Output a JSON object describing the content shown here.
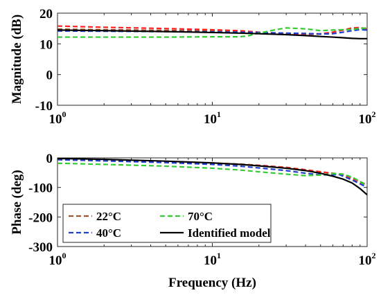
{
  "chart_data": [
    {
      "type": "line",
      "xscale": "log",
      "xlim": [
        1,
        100
      ],
      "ylim": [
        -10,
        20
      ],
      "xlabel": "",
      "ylabel": "Magnitude (dB)",
      "xticks": [
        {
          "base": "10",
          "exp": "0"
        },
        {
          "base": "10",
          "exp": "1"
        },
        {
          "base": "10",
          "exp": "2"
        }
      ],
      "yticks": [
        "-10",
        "0",
        "10",
        "20"
      ],
      "ytick_values": [
        -10,
        0,
        10,
        20
      ],
      "series": [
        {
          "name": "22°C",
          "color": "#a0522d",
          "dash": true,
          "x": [
            1,
            2,
            5,
            10,
            15,
            20,
            30,
            40,
            50,
            60,
            70,
            80,
            90,
            100
          ],
          "y": [
            14.8,
            14.6,
            14.4,
            14.2,
            14.0,
            13.5,
            13.3,
            13.0,
            13.2,
            13.8,
            14.5,
            15.0,
            15.1,
            14.9
          ]
        },
        {
          "name": "",
          "color": "#ff2020",
          "dash": true,
          "x": [
            1,
            2,
            5,
            10,
            15,
            20,
            30,
            40,
            50,
            60,
            70,
            80,
            90,
            100
          ],
          "y": [
            15.8,
            15.4,
            15.0,
            14.6,
            14.3,
            13.8,
            13.4,
            13.2,
            13.3,
            13.8,
            14.5,
            15.2,
            15.3,
            14.9
          ]
        },
        {
          "name": "40°C",
          "color": "#1f3fcf",
          "dash": true,
          "x": [
            1,
            2,
            5,
            10,
            15,
            20,
            30,
            40,
            50,
            60,
            70,
            80,
            90,
            100
          ],
          "y": [
            14.2,
            14.1,
            14.0,
            13.9,
            13.8,
            13.7,
            13.5,
            13.4,
            13.2,
            13.3,
            13.8,
            14.3,
            14.6,
            14.5
          ]
        },
        {
          "name": "70°C",
          "color": "#33cc33",
          "dash": true,
          "x": [
            1,
            2,
            5,
            10,
            15,
            17,
            20,
            25,
            30,
            40,
            50,
            60,
            70,
            80,
            90,
            100
          ],
          "y": [
            12.2,
            12.2,
            12.2,
            12.3,
            12.3,
            12.6,
            13.5,
            14.5,
            15.2,
            14.9,
            14.3,
            14.5,
            14.6,
            14.7,
            15.0,
            15.2
          ]
        },
        {
          "name": "Identified model",
          "color": "#000000",
          "dash": false,
          "x": [
            1,
            2,
            5,
            10,
            15,
            20,
            30,
            40,
            50,
            60,
            70,
            80,
            90,
            100
          ],
          "y": [
            14.5,
            14.3,
            14.0,
            13.7,
            13.5,
            13.3,
            13.0,
            12.7,
            12.4,
            12.2,
            12.0,
            11.8,
            11.7,
            11.7
          ]
        }
      ]
    },
    {
      "type": "line",
      "xscale": "log",
      "xlim": [
        1,
        100
      ],
      "ylim": [
        -300,
        0
      ],
      "xlabel": "Frequency (Hz)",
      "ylabel": "Phase (deg)",
      "xticks": [
        {
          "base": "10",
          "exp": "0"
        },
        {
          "base": "10",
          "exp": "1"
        },
        {
          "base": "10",
          "exp": "2"
        }
      ],
      "yticks": [
        "-300",
        "-200",
        "-100",
        "0"
      ],
      "ytick_values": [
        -300,
        -200,
        -100,
        0
      ],
      "legend": {
        "placement": "bottom-left",
        "entries": [
          "22°C",
          "70°C",
          "40°C",
          "Identified model"
        ]
      },
      "series": [
        {
          "name": "22°C",
          "color": "#a0522d",
          "dash": true,
          "x": [
            1,
            2,
            5,
            10,
            15,
            20,
            30,
            40,
            50,
            60,
            70,
            80,
            90,
            100
          ],
          "y": [
            -5,
            -9,
            -14,
            -18,
            -21,
            -25,
            -32,
            -40,
            -47,
            -52,
            -56,
            -68,
            -80,
            -92
          ]
        },
        {
          "name": "",
          "color": "#ff2020",
          "dash": true,
          "x": [
            1,
            2,
            5,
            10,
            15,
            20,
            30,
            40,
            50,
            60,
            70,
            80,
            90,
            100
          ],
          "y": [
            -6,
            -10,
            -15,
            -19,
            -22,
            -26,
            -33,
            -41,
            -47,
            -53,
            -58,
            -70,
            -82,
            -94
          ]
        },
        {
          "name": "40°C",
          "color": "#1f3fcf",
          "dash": true,
          "x": [
            1,
            2,
            5,
            10,
            15,
            20,
            30,
            40,
            50,
            60,
            65,
            70,
            80,
            90,
            100
          ],
          "y": [
            -6,
            -10,
            -16,
            -22,
            -28,
            -34,
            -43,
            -52,
            -57,
            -58,
            -55,
            -62,
            -75,
            -88,
            -100
          ]
        },
        {
          "name": "70°C",
          "color": "#33cc33",
          "dash": true,
          "x": [
            1,
            2,
            5,
            10,
            15,
            20,
            30,
            40,
            50,
            60,
            70,
            80,
            90,
            100
          ],
          "y": [
            -18,
            -22,
            -28,
            -35,
            -41,
            -47,
            -55,
            -60,
            -58,
            -53,
            -55,
            -65,
            -80,
            -95
          ]
        },
        {
          "name": "Identified model",
          "color": "#000000",
          "dash": false,
          "x": [
            1,
            2,
            5,
            10,
            15,
            20,
            30,
            40,
            50,
            60,
            70,
            80,
            90,
            100
          ],
          "y": [
            -2,
            -5,
            -11,
            -17,
            -22,
            -27,
            -35,
            -43,
            -52,
            -62,
            -72,
            -85,
            -104,
            -125
          ]
        }
      ]
    }
  ]
}
